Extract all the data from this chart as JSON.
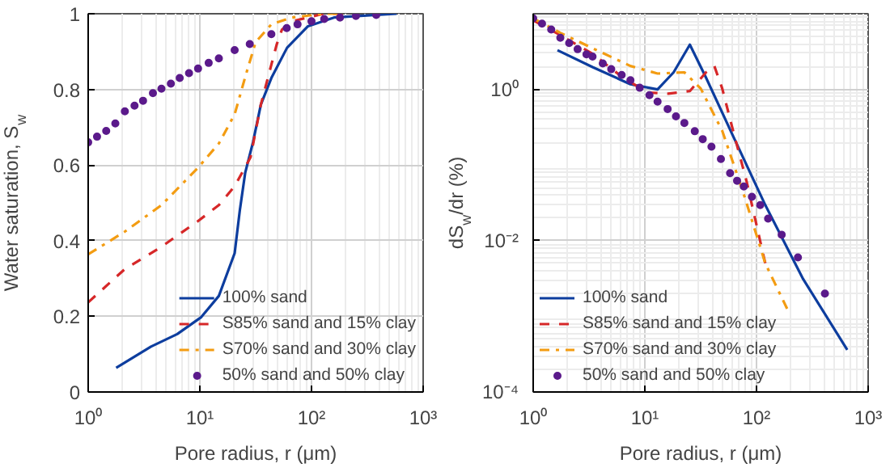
{
  "chart_data": [
    {
      "type": "line",
      "xlabel": "Pore radius, r (μm)",
      "ylabel": "Water saturation, S$_{w}$",
      "log": "x",
      "grid": true,
      "legend": "bottom right",
      "xlim": [
        1,
        1000
      ],
      "xticks": [
        {
          "value": 1,
          "label": "10⁰"
        },
        {
          "value": 10,
          "label": "10¹"
        },
        {
          "value": 100,
          "label": "10²"
        },
        {
          "value": 1000,
          "label": "10³"
        }
      ],
      "ylim": [
        0,
        1
      ],
      "yticks": [
        0,
        0.2,
        0.4,
        0.6,
        0.8,
        1
      ],
      "series": [
        {
          "name": "100% sand",
          "color": "#0d3d9e",
          "line_style": "solid",
          "x": [
            1.78,
            3.65,
            6.27,
            10.3,
            14.8,
            20.5,
            22.8,
            25.5,
            29.9,
            35.2,
            43.7,
            60.4,
            93,
            159,
            580
          ],
          "values": [
            0.064,
            0.12,
            0.153,
            0.198,
            0.254,
            0.367,
            0.48,
            0.58,
            0.66,
            0.76,
            0.83,
            0.91,
            0.967,
            0.99,
            1.0
          ]
        },
        {
          "name": "S85% sand and 15% clay",
          "color": "#d62728",
          "line_style": "dashed",
          "x": [
            1,
            2.13,
            4.53,
            9.64,
            14.8,
            20.5,
            28.4,
            35.2,
            48.7,
            54.3,
            67,
            128,
            200
          ],
          "values": [
            0.237,
            0.325,
            0.384,
            0.452,
            0.494,
            0.544,
            0.62,
            0.76,
            0.918,
            0.958,
            0.98,
            1.0,
            1.0
          ]
        },
        {
          "name": "S70% sand and 30% clay",
          "color": "#f39c12",
          "line_style": "dashdot",
          "x": [
            1,
            2.13,
            4.53,
            9.64,
            14.8,
            20.5,
            25.5,
            31.6,
            43.7,
            67,
            128,
            170
          ],
          "values": [
            0.364,
            0.424,
            0.494,
            0.593,
            0.657,
            0.734,
            0.833,
            0.925,
            0.972,
            0.99,
            1.0,
            1.0
          ]
        },
        {
          "name": "50% sand and 50% clay",
          "color": "#5b1a8b",
          "type": "scatter",
          "marker": "circle",
          "x": [
            1,
            1.2,
            1.45,
            1.75,
            2.13,
            2.6,
            3.1,
            3.8,
            4.53,
            5.5,
            6.6,
            8,
            9.64,
            12,
            14.8,
            20.5,
            28,
            43.7,
            60,
            75,
            100,
            130,
            180,
            250,
            380
          ],
          "values": [
            0.66,
            0.675,
            0.69,
            0.71,
            0.742,
            0.757,
            0.77,
            0.79,
            0.802,
            0.815,
            0.83,
            0.843,
            0.855,
            0.87,
            0.882,
            0.904,
            0.92,
            0.946,
            0.962,
            0.972,
            0.98,
            0.986,
            0.99,
            0.994,
            0.997
          ]
        }
      ]
    },
    {
      "type": "line",
      "xlabel": "Pore radius, r (μm)",
      "ylabel": "dS$_{w}$/dr (%)",
      "log": "xy",
      "grid": true,
      "legend": "bottom left",
      "xlim": [
        1,
        1000
      ],
      "xticks": [
        {
          "value": 1,
          "label": "10⁰"
        },
        {
          "value": 10,
          "label": "10¹"
        },
        {
          "value": 100,
          "label": "10²"
        },
        {
          "value": 1000,
          "label": "10³"
        }
      ],
      "ylim": [
        0.0001,
        10
      ],
      "yticks": [
        {
          "value": 0.0001,
          "label": "10⁻⁴"
        },
        {
          "value": 0.01,
          "label": "10⁻²"
        },
        {
          "value": 1,
          "label": "10⁰"
        }
      ],
      "series": [
        {
          "name": "100% sand",
          "color": "#0d3d9e",
          "line_style": "solid",
          "x": [
            1.65,
            3.4,
            7.43,
            13,
            18.1,
            25.3,
            35.3,
            61.7,
            120,
            262,
            650
          ],
          "values": [
            3.3,
            1.97,
            1.17,
            1.0,
            1.68,
            3.9,
            1.43,
            0.241,
            0.0295,
            0.0031,
            0.00036
          ]
        },
        {
          "name": "S85% sand and 15% clay",
          "color": "#d62728",
          "line_style": "dashed",
          "x": [
            1,
            1.75,
            3.4,
            5.94,
            10.4,
            16.2,
            25.3,
            35.3,
            41.9,
            49.3,
            61.7,
            81.5,
            114,
            120
          ],
          "values": [
            8.2,
            5.2,
            2.95,
            1.55,
            0.91,
            0.88,
            0.95,
            1.68,
            2.04,
            1.03,
            0.284,
            0.061,
            0.0069,
            0.005
          ]
        },
        {
          "name": "S70% sand and 30% clay",
          "color": "#f39c12",
          "line_style": "dashdot",
          "x": [
            1,
            1.75,
            3.4,
            7.43,
            13,
            22.6,
            31.6,
            49.3,
            77,
            120,
            188
          ],
          "values": [
            8.7,
            5.6,
            3.5,
            2.04,
            1.62,
            1.68,
            1.03,
            0.284,
            0.041,
            0.005,
            0.00126
          ]
        },
        {
          "name": "50% sand and 50% clay",
          "color": "#5b1a8b",
          "type": "scatter",
          "marker": "circle",
          "x": [
            1,
            1.2,
            1.45,
            1.75,
            2.1,
            2.5,
            3.0,
            3.4,
            4.2,
            5.0,
            6.2,
            7.43,
            9.0,
            11,
            13,
            16,
            19,
            22.6,
            28,
            33,
            39.5,
            48,
            58,
            67,
            77,
            91,
            108,
            127,
            168,
            235,
            410
          ],
          "values": [
            8.7,
            7.4,
            6.2,
            4.8,
            4.1,
            3.4,
            2.9,
            2.72,
            2.2,
            1.85,
            1.55,
            1.32,
            1.05,
            0.84,
            0.69,
            0.55,
            0.44,
            0.36,
            0.28,
            0.22,
            0.175,
            0.12,
            0.078,
            0.062,
            0.052,
            0.038,
            0.0295,
            0.0196,
            0.012,
            0.006,
            0.002
          ]
        }
      ]
    }
  ]
}
